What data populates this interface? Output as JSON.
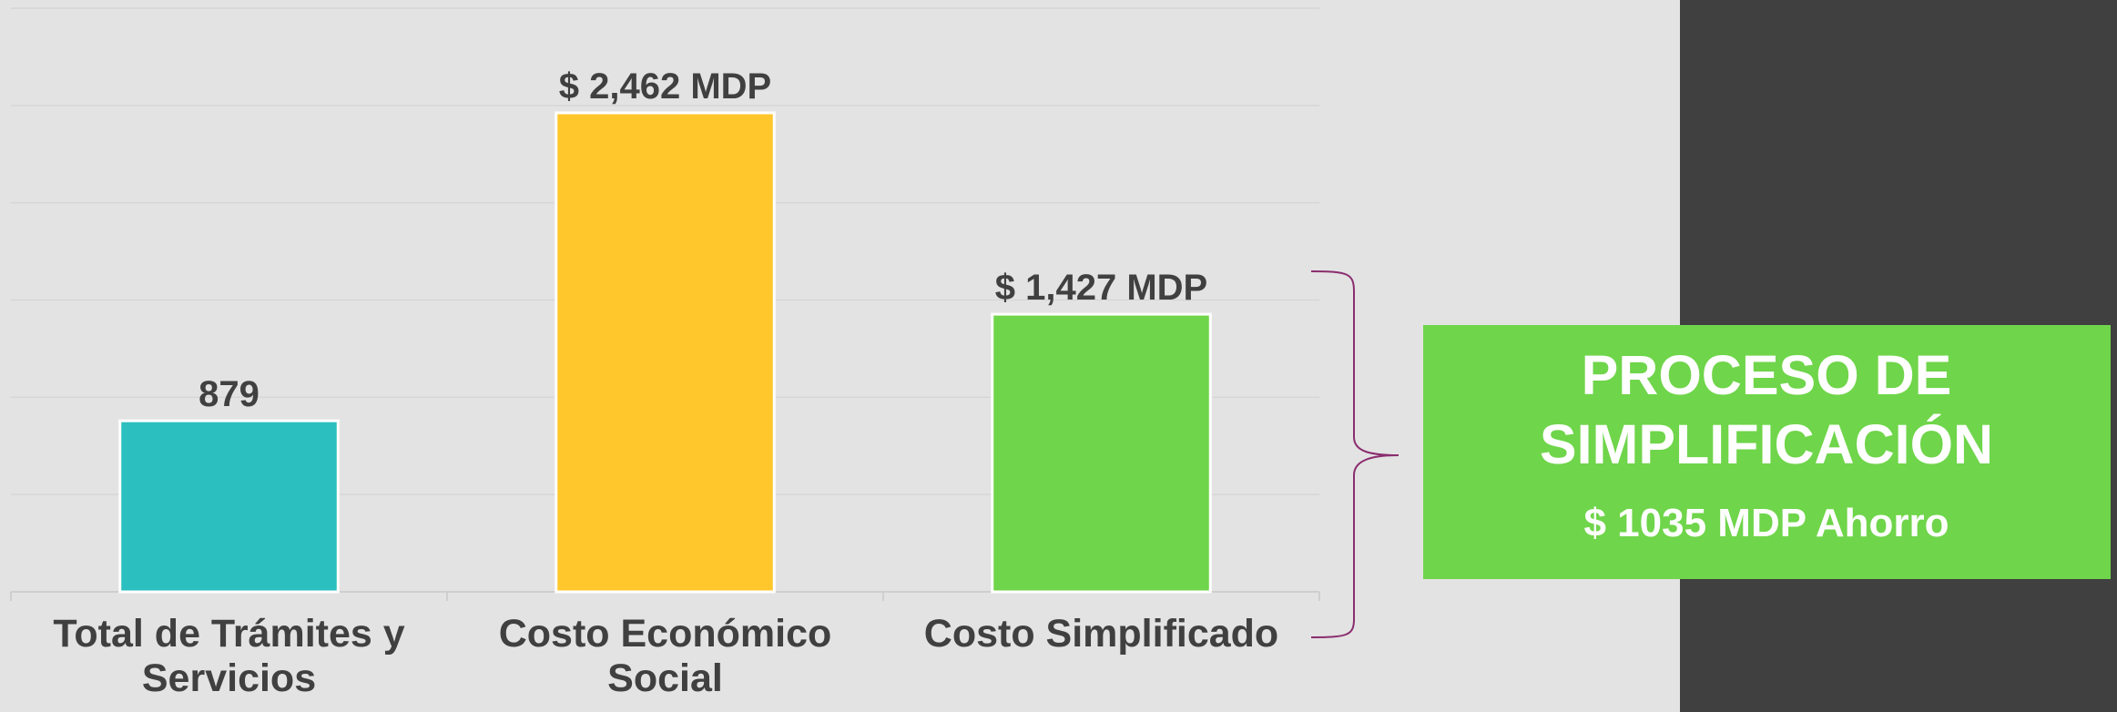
{
  "chart_data": {
    "type": "bar",
    "categories": [
      "Total de Trámites y Servicios",
      "Costo Económico Social",
      "Costo Simplificado"
    ],
    "values": [
      879,
      2462,
      1427
    ],
    "value_labels": [
      "879",
      "$ 2,462 MDP",
      "$ 1,427 MDP"
    ],
    "colors": [
      "#2bbfbf",
      "#ffc72c",
      "#6fd54a"
    ],
    "ylim": [
      0,
      3000
    ],
    "yticks": [
      0,
      500,
      1000,
      1500,
      2000,
      2500,
      3000
    ],
    "grid": true,
    "annotation": {
      "title": "PROCESO DE SIMPLIFICACIÓN",
      "text": "$ 1035 MDP Ahorro"
    }
  }
}
